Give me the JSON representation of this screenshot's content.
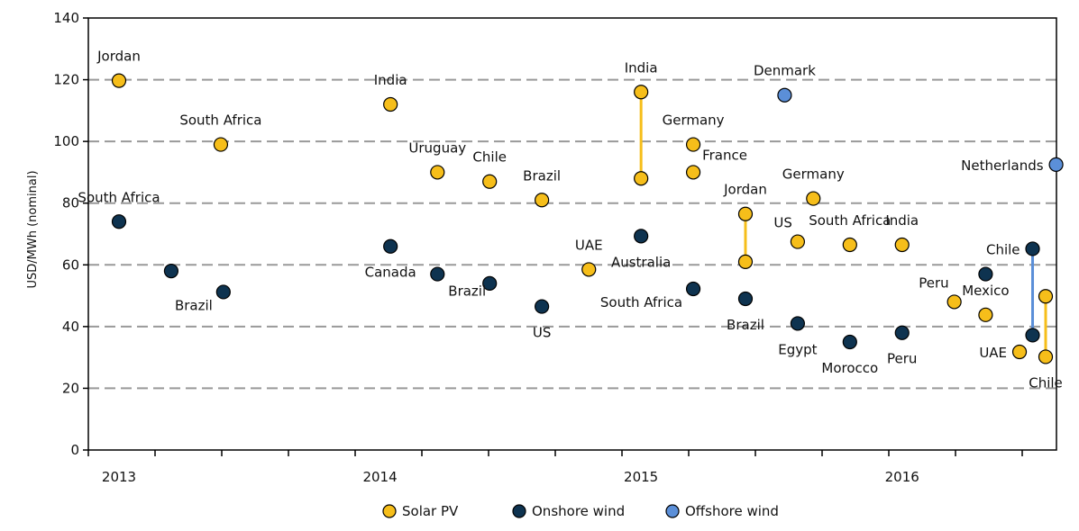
{
  "chart_data": {
    "type": "scatter",
    "title": "",
    "xlabel": "",
    "ylabel": "USD/MWh (nominal)",
    "ylim": [
      0,
      140
    ],
    "yticks": [
      0,
      20,
      40,
      60,
      80,
      100,
      120,
      140
    ],
    "xlim": [
      2013.0,
      2016.55
    ],
    "xticks": [
      {
        "label": "2013",
        "x": 2013.0
      },
      {
        "label": "2014",
        "x": 2014.0
      },
      {
        "label": "2015",
        "x": 2015.0
      },
      {
        "label": "2016",
        "x": 2016.0
      }
    ],
    "grid": "horizontal dashed",
    "legend_position": "bottom",
    "colors": {
      "Solar PV": "#F6BE1A",
      "Onshore wind": "#0E3350",
      "Offshore wind": "#5B8FD8",
      "solar_range": "#F6BE1A",
      "wind_range": "#5B8FD8",
      "grid": "#999999"
    },
    "series": [
      {
        "name": "Solar PV",
        "points": [
          {
            "label": "Jordan",
            "x": 2013.0,
            "y": 119.7
          },
          {
            "label": "South Africa",
            "x": 2013.39,
            "y": 99
          },
          {
            "label": "India",
            "x": 2014.04,
            "y": 112
          },
          {
            "label": "Uruguay",
            "x": 2014.22,
            "y": 90
          },
          {
            "label": "Chile",
            "x": 2014.42,
            "y": 87
          },
          {
            "label": "Brazil",
            "x": 2014.62,
            "y": 81
          },
          {
            "label": "UAE",
            "x": 2014.8,
            "y": 58.5
          },
          {
            "label": "India",
            "x": 2015.0,
            "y": 116
          },
          {
            "label": "",
            "x": 2015.0,
            "y": 88
          },
          {
            "label": "Germany",
            "x": 2015.2,
            "y": 99
          },
          {
            "label": "France",
            "x": 2015.2,
            "y": 90
          },
          {
            "label": "Jordan",
            "x": 2015.4,
            "y": 76.5
          },
          {
            "label": "",
            "x": 2015.4,
            "y": 61
          },
          {
            "label": "US",
            "x": 2015.6,
            "y": 67.5
          },
          {
            "label": "Germany",
            "x": 2015.66,
            "y": 81.5
          },
          {
            "label": "South Africa",
            "x": 2015.8,
            "y": 66.5
          },
          {
            "label": "India",
            "x": 2016.0,
            "y": 66.5
          },
          {
            "label": "Peru",
            "x": 2016.2,
            "y": 48
          },
          {
            "label": "Mexico",
            "x": 2016.32,
            "y": 43.8
          },
          {
            "label": "UAE",
            "x": 2016.45,
            "y": 31.8
          },
          {
            "label": "",
            "x": 2016.55,
            "y": 49.8
          },
          {
            "label": "Chile",
            "x": 2016.55,
            "y": 30.2
          }
        ]
      },
      {
        "name": "Onshore wind",
        "points": [
          {
            "label": "South Africa",
            "x": 2013.0,
            "y": 74
          },
          {
            "label": "",
            "x": 2013.2,
            "y": 58
          },
          {
            "label": "Brazil",
            "x": 2013.4,
            "y": 51.2
          },
          {
            "label": "Canada",
            "x": 2014.04,
            "y": 66
          },
          {
            "label": "Brazil",
            "x": 2014.22,
            "y": 57
          },
          {
            "label": "",
            "x": 2014.42,
            "y": 54
          },
          {
            "label": "US",
            "x": 2014.62,
            "y": 46.5
          },
          {
            "label": "Australia",
            "x": 2015.0,
            "y": 69.3
          },
          {
            "label": "South Africa",
            "x": 2015.2,
            "y": 52.2
          },
          {
            "label": "Brazil",
            "x": 2015.4,
            "y": 49
          },
          {
            "label": "Egypt",
            "x": 2015.6,
            "y": 41
          },
          {
            "label": "Morocco",
            "x": 2015.8,
            "y": 35
          },
          {
            "label": "Peru",
            "x": 2016.0,
            "y": 38
          },
          {
            "label": "",
            "x": 2016.32,
            "y": 57
          },
          {
            "label": "Chile",
            "x": 2016.5,
            "y": 65.2
          },
          {
            "label": "",
            "x": 2016.5,
            "y": 37.2
          }
        ]
      },
      {
        "name": "Offshore wind",
        "points": [
          {
            "label": "Denmark",
            "x": 2015.55,
            "y": 115
          },
          {
            "label": "Netherlands",
            "x": 2016.59,
            "y": 92.5
          }
        ]
      }
    ],
    "ranges": [
      {
        "x": 2015.0,
        "y1": 88,
        "y2": 116,
        "kind": "solar_range"
      },
      {
        "x": 2015.4,
        "y1": 61,
        "y2": 76.5,
        "kind": "solar_range"
      },
      {
        "x": 2016.5,
        "y1": 37.2,
        "y2": 65.2,
        "kind": "wind_range"
      },
      {
        "x": 2016.55,
        "y1": 30.2,
        "y2": 49.8,
        "kind": "solar_range"
      }
    ],
    "annotations": [
      {
        "text": "Jordan",
        "x": 2013.0,
        "y": 119.7,
        "pos": "above"
      },
      {
        "text": "South Africa",
        "x": 2013.39,
        "y": 99,
        "pos": "above"
      },
      {
        "text": "India",
        "x": 2014.04,
        "y": 112,
        "pos": "above"
      },
      {
        "text": "Uruguay",
        "x": 2014.22,
        "y": 90,
        "pos": "above"
      },
      {
        "text": "Chile",
        "x": 2014.42,
        "y": 87,
        "pos": "above"
      },
      {
        "text": "Brazil",
        "x": 2014.62,
        "y": 81,
        "pos": "above"
      },
      {
        "text": "UAE",
        "x": 2014.8,
        "y": 58.5,
        "pos": "above"
      },
      {
        "text": "India",
        "x": 2015.0,
        "y": 116,
        "pos": "above"
      },
      {
        "text": "Germany",
        "x": 2015.2,
        "y": 99,
        "pos": "above"
      },
      {
        "text": "France",
        "x": 2015.2,
        "y": 90,
        "pos": "upright"
      },
      {
        "text": "Jordan",
        "x": 2015.4,
        "y": 76.5,
        "pos": "above"
      },
      {
        "text": "US",
        "x": 2015.6,
        "y": 67.5,
        "pos": "upleft"
      },
      {
        "text": "Germany",
        "x": 2015.66,
        "y": 81.5,
        "pos": "above"
      },
      {
        "text": "South Africa",
        "x": 2015.8,
        "y": 66.5,
        "pos": "above"
      },
      {
        "text": "India",
        "x": 2016.0,
        "y": 66.5,
        "pos": "above"
      },
      {
        "text": "Peru",
        "x": 2016.2,
        "y": 48,
        "pos": "upleft"
      },
      {
        "text": "Mexico",
        "x": 2016.32,
        "y": 43.8,
        "pos": "above"
      },
      {
        "text": "UAE",
        "x": 2016.45,
        "y": 31.8,
        "pos": "left"
      },
      {
        "text": "Chile",
        "x": 2016.55,
        "y": 30.2,
        "pos": "below"
      },
      {
        "text": "South Africa",
        "x": 2013.0,
        "y": 74,
        "pos": "above"
      },
      {
        "text": "Brazil",
        "x": 2013.4,
        "y": 51.2,
        "pos": "downleft"
      },
      {
        "text": "Canada",
        "x": 2014.04,
        "y": 66,
        "pos": "below"
      },
      {
        "text": "Brazil",
        "x": 2014.22,
        "y": 57,
        "pos": "downright"
      },
      {
        "text": "US",
        "x": 2014.62,
        "y": 46.5,
        "pos": "below"
      },
      {
        "text": "Australia",
        "x": 2015.0,
        "y": 69.3,
        "pos": "below"
      },
      {
        "text": "South Africa",
        "x": 2015.2,
        "y": 52.2,
        "pos": "downleft"
      },
      {
        "text": "Brazil",
        "x": 2015.4,
        "y": 49,
        "pos": "below"
      },
      {
        "text": "Egypt",
        "x": 2015.6,
        "y": 41,
        "pos": "below"
      },
      {
        "text": "Morocco",
        "x": 2015.8,
        "y": 35,
        "pos": "below"
      },
      {
        "text": "Peru",
        "x": 2016.0,
        "y": 38,
        "pos": "below"
      },
      {
        "text": "Chile",
        "x": 2016.5,
        "y": 65.2,
        "pos": "left"
      },
      {
        "text": "Denmark",
        "x": 2015.55,
        "y": 115,
        "pos": "above"
      },
      {
        "text": "Netherlands",
        "x": 2016.59,
        "y": 92.5,
        "pos": "left"
      }
    ]
  }
}
